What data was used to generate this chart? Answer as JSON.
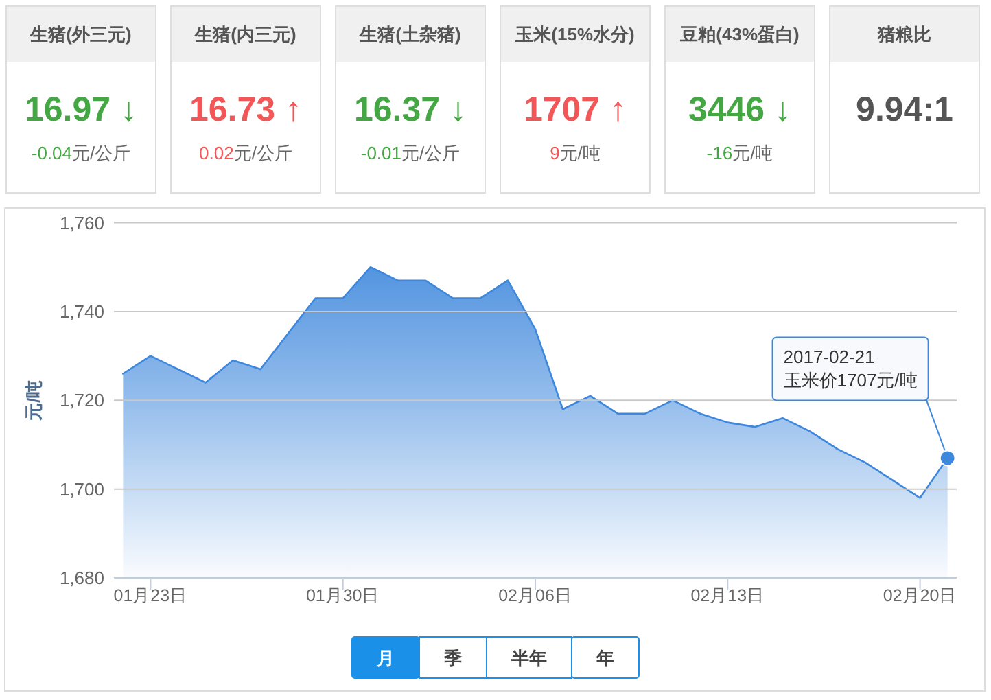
{
  "chart_data": [
    {
      "type": "other",
      "title": "生猪(外三元)",
      "annotations": [
        "16.97 ↓",
        "-0.04",
        "元/公斤"
      ],
      "colors": [
        "#44a744",
        "#44a744",
        "#666666"
      ]
    },
    {
      "type": "other",
      "title": "生猪(内三元)",
      "annotations": [
        "16.73 ↑",
        "0.02",
        "元/公斤"
      ],
      "colors": [
        "#f25656",
        "#f25656",
        "#666666"
      ]
    },
    {
      "type": "other",
      "title": "生猪(土杂猪)",
      "annotations": [
        "16.37 ↓",
        "-0.01",
        "元/公斤"
      ],
      "colors": [
        "#44a744",
        "#44a744",
        "#666666"
      ]
    },
    {
      "type": "other",
      "title": "玉米(15%水分)",
      "annotations": [
        "1707 ↑",
        "9",
        "元/吨"
      ],
      "colors": [
        "#f25656",
        "#f25656",
        "#666666"
      ]
    },
    {
      "type": "other",
      "title": "豆粕(43%蛋白)",
      "annotations": [
        "3446 ↓",
        "-16",
        "元/吨"
      ],
      "colors": [
        "#44a744",
        "#44a744",
        "#666666"
      ]
    },
    {
      "type": "other",
      "title": "猪粮比",
      "annotations": [
        "9.94:1"
      ],
      "colors": [
        "#555555"
      ]
    },
    {
      "type": "area",
      "ylabel": "元/吨",
      "x": [
        "2017-01-22",
        "2017-01-23",
        "2017-01-24",
        "2017-01-25",
        "2017-01-26",
        "2017-01-27",
        "2017-01-28",
        "2017-01-29",
        "2017-01-30",
        "2017-01-31",
        "2017-02-01",
        "2017-02-02",
        "2017-02-03",
        "2017-02-04",
        "2017-02-05",
        "2017-02-06",
        "2017-02-07",
        "2017-02-08",
        "2017-02-09",
        "2017-02-10",
        "2017-02-11",
        "2017-02-12",
        "2017-02-13",
        "2017-02-14",
        "2017-02-15",
        "2017-02-16",
        "2017-02-17",
        "2017-02-18",
        "2017-02-19",
        "2017-02-20",
        "2017-02-21"
      ],
      "values": [
        1726,
        1730,
        1727,
        1724,
        1729,
        1727,
        1735,
        1743,
        1743,
        1750,
        1747,
        1747,
        1743,
        1743,
        1747,
        1736,
        1718,
        1721,
        1717,
        1717,
        1720,
        1717,
        1715,
        1714,
        1716,
        1713,
        1709,
        1706,
        1702,
        1698,
        1707
      ],
      "color": "#3d87dc",
      "xlim": [
        "2017-01-21T16:00",
        "2017-02-21T08:00"
      ],
      "xticks": [
        {
          "value": "2017-01-23",
          "label": "01月23日"
        },
        {
          "value": "2017-01-30",
          "label": "01月30日"
        },
        {
          "value": "2017-02-06",
          "label": "02月06日"
        },
        {
          "value": "2017-02-13",
          "label": "02月13日"
        },
        {
          "value": "2017-02-20",
          "label": "02月20日"
        }
      ],
      "ylim": [
        1680,
        1760
      ],
      "yticks": [
        {
          "value": 1680,
          "label": "1,680"
        },
        {
          "value": 1700,
          "label": "1,700"
        },
        {
          "value": 1720,
          "label": "1,720"
        },
        {
          "value": 1740,
          "label": "1,740"
        },
        {
          "value": 1760,
          "label": "1,760"
        }
      ],
      "grid": "y",
      "annotations": [
        {
          "text": "2017-02-21\n玉米价1707元/吨",
          "x": "2017-02-21",
          "y": 1707
        }
      ]
    },
    {
      "type": "other",
      "annotations": [
        "月",
        "季",
        "半年",
        "年"
      ],
      "colors": [
        "#1a90e8",
        "#ffffff",
        "#ffffff",
        "#ffffff"
      ]
    }
  ]
}
